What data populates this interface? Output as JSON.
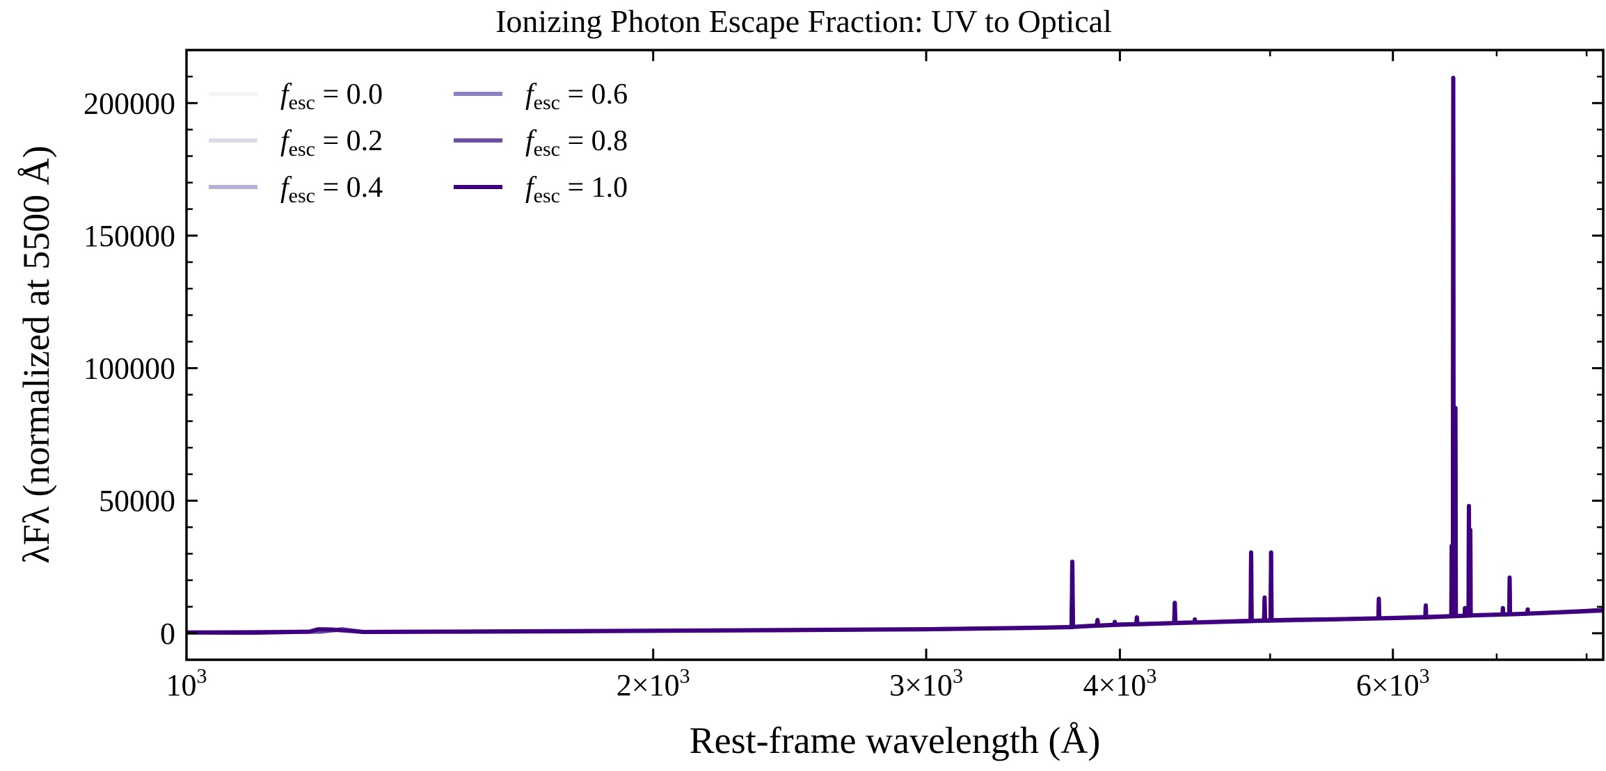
{
  "chart_data": {
    "type": "line",
    "title": "Ionizing Photon Escape Fraction: UV to Optical",
    "xlabel": "Rest-frame wavelength (Å)",
    "ylabel": "λFλ (normalized at 5500 Å)",
    "xscale": "log",
    "xlim": [
      1000,
      8200
    ],
    "ylim": [
      -10000,
      220000
    ],
    "grid": false,
    "legend_position": "top-left",
    "x_ticks": [
      {
        "value": 1000,
        "mant": "",
        "exp": "3",
        "label": "10^3"
      },
      {
        "value": 2000,
        "mant": "2×",
        "exp": "3",
        "label": "2×10^3"
      },
      {
        "value": 3000,
        "mant": "3×",
        "exp": "3",
        "label": "3×10^3"
      },
      {
        "value": 4000,
        "mant": "4×",
        "exp": "3",
        "label": "4×10^3"
      },
      {
        "value": 6000,
        "mant": "6×",
        "exp": "3",
        "label": "6×10^3"
      }
    ],
    "x_minor_ticks": [
      5000,
      7000,
      8000
    ],
    "y_ticks": [
      0,
      50000,
      100000,
      150000,
      200000
    ],
    "y_minor_step": 10000,
    "series": [
      {
        "name": "f_esc = 0.0",
        "fesc": "0.0",
        "color": "#f4f3f8",
        "draw": false
      },
      {
        "name": "f_esc = 0.2",
        "fesc": "0.2",
        "color": "#dcdbea",
        "draw": false
      },
      {
        "name": "f_esc = 0.4",
        "fesc": "0.4",
        "color": "#b4b2d4",
        "draw": false
      },
      {
        "name": "f_esc = 0.6",
        "fesc": "0.6",
        "color": "#8983c0",
        "draw": false
      },
      {
        "name": "f_esc = 0.8",
        "fesc": "0.8",
        "color": "#6a4ea8",
        "draw": true,
        "x": [
          1000,
          1220,
          1260,
          1300,
          2000,
          3000,
          3600,
          3720,
          4000,
          4400,
          4900,
          5300,
          6000,
          6550,
          7000,
          8200
        ],
        "y": [
          300,
          600,
          1500,
          500,
          1000,
          1500,
          2200,
          2400,
          3200,
          3900,
          4600,
          5000,
          5800,
          6500,
          7000,
          8500
        ]
      },
      {
        "name": "f_esc = 1.0",
        "fesc": "1.0",
        "color": "#3f007d",
        "draw": true,
        "x": [
          1000,
          1100,
          1200,
          1216,
          1240,
          1280,
          1300,
          1500,
          1700,
          2000,
          2500,
          3000,
          3500,
          3720,
          3800,
          4000,
          4200,
          4400,
          4600,
          4800,
          5000,
          5200,
          5500,
          6000,
          6300,
          6550,
          6800,
          7200,
          7600,
          8000,
          8200
        ],
        "y": [
          300,
          200,
          600,
          1500,
          1400,
          800,
          500,
          600,
          700,
          900,
          1200,
          1500,
          2000,
          2300,
          2700,
          3300,
          3600,
          4000,
          4300,
          4600,
          4900,
          5100,
          5300,
          5700,
          6000,
          6400,
          6800,
          7200,
          7800,
          8400,
          8800
        ]
      }
    ],
    "emission_lines": [
      {
        "x": 3727,
        "peak": 27000
      },
      {
        "x": 3869,
        "peak": 5000
      },
      {
        "x": 3970,
        "peak": 4300
      },
      {
        "x": 4102,
        "peak": 6000
      },
      {
        "x": 4340,
        "peak": 11500
      },
      {
        "x": 4471,
        "peak": 5200
      },
      {
        "x": 4861,
        "peak": 30500
      },
      {
        "x": 4959,
        "peak": 13500
      },
      {
        "x": 5007,
        "peak": 30500
      },
      {
        "x": 5876,
        "peak": 13000
      },
      {
        "x": 6300,
        "peak": 10500
      },
      {
        "x": 6548,
        "peak": 33000
      },
      {
        "x": 6563,
        "peak": 209500
      },
      {
        "x": 6584,
        "peak": 85000
      },
      {
        "x": 6678,
        "peak": 9500
      },
      {
        "x": 6717,
        "peak": 48000
      },
      {
        "x": 6731,
        "peak": 39000
      },
      {
        "x": 7065,
        "peak": 9500
      },
      {
        "x": 7136,
        "peak": 21000
      },
      {
        "x": 7330,
        "peak": 9000
      }
    ]
  }
}
